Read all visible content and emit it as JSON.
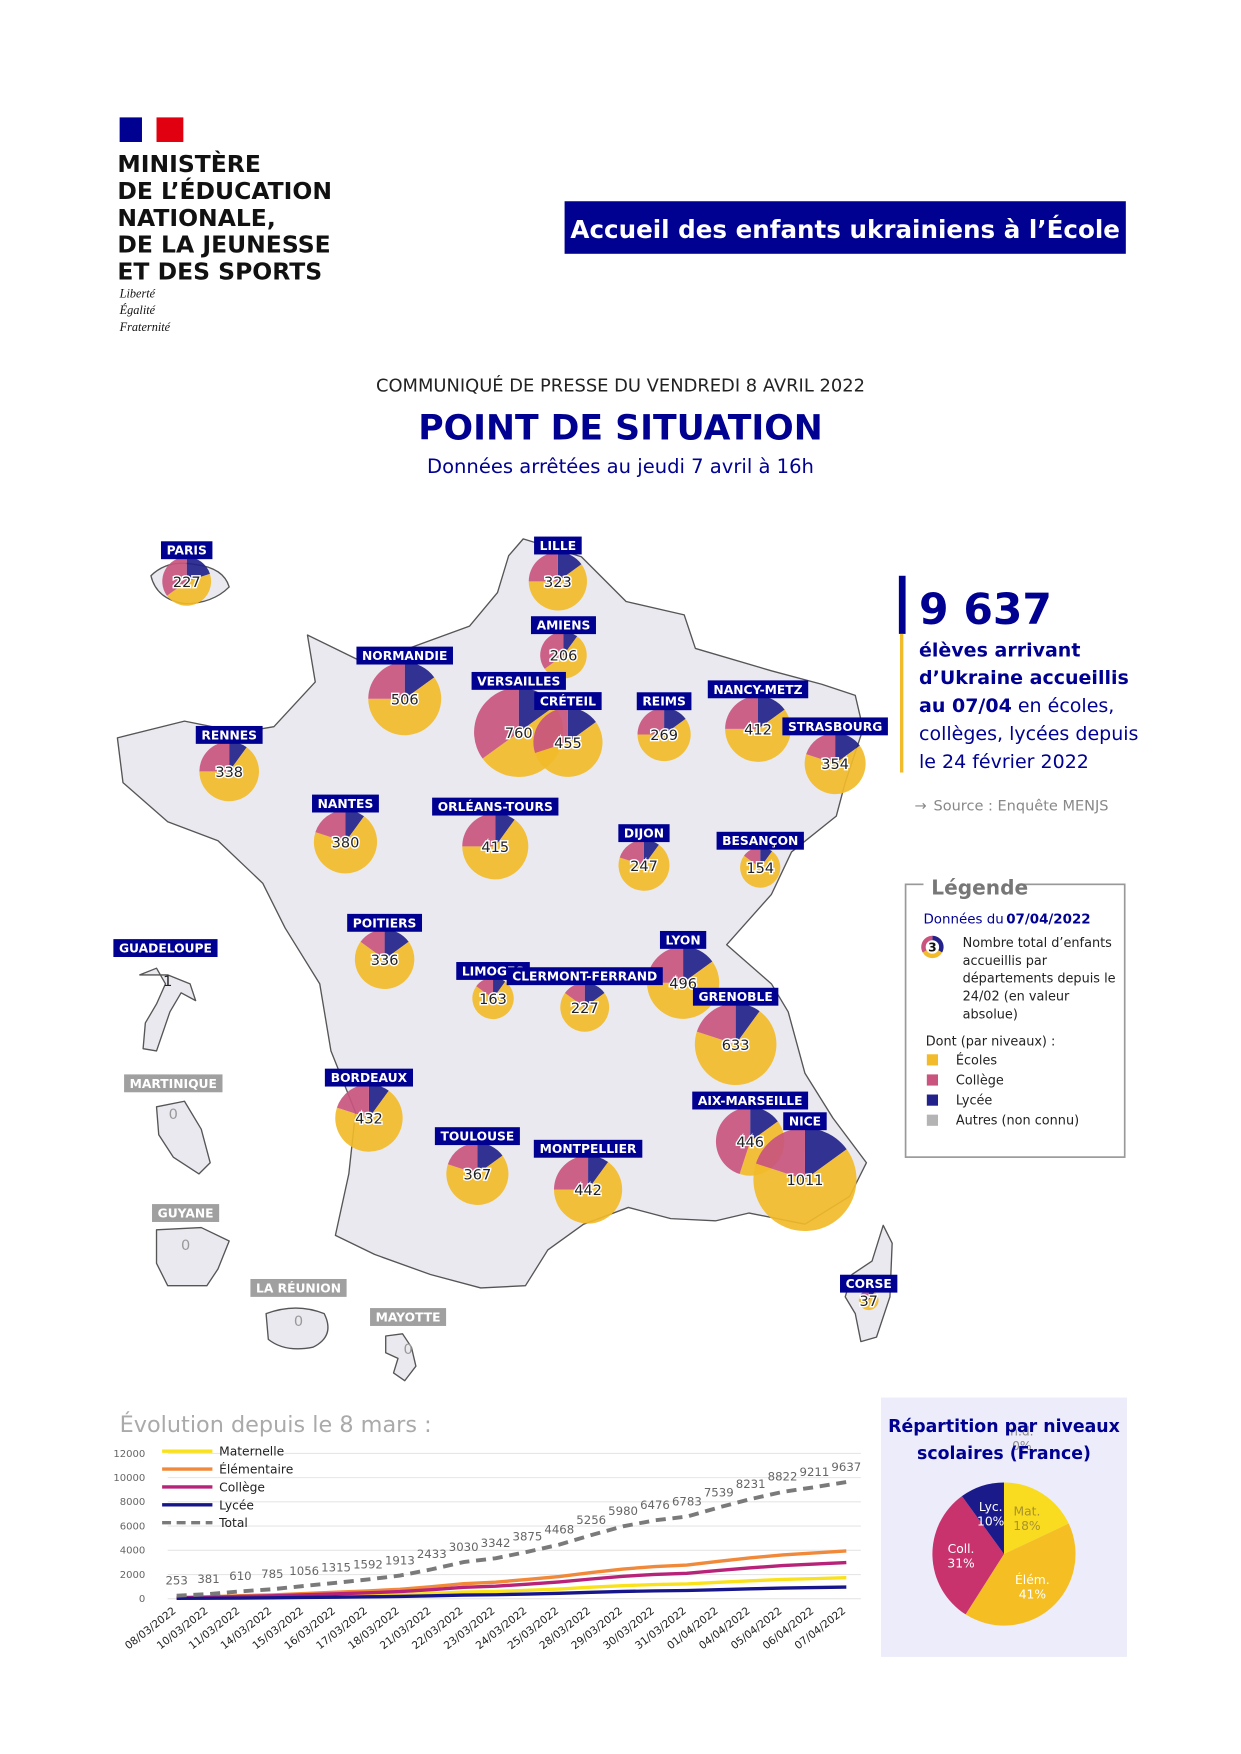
{
  "header": {
    "ministry": [
      "MINISTÈRE",
      "DE L’ÉDUCATION",
      "NATIONALE,",
      "DE LA JEUNESSE",
      "ET DES SPORTS"
    ],
    "motto": [
      "Liberté",
      "Égalité",
      "Fraternité"
    ],
    "banner": "Accueil des enfants ukrainiens à l’École"
  },
  "press": {
    "date_line": "COMMUNIQUÉ DE PRESSE DU VENDREDI 8 AVRIL 2022",
    "title": "POINT DE SITUATION",
    "subtitle": "Données arrêtées au jeudi 7 avril à 16h"
  },
  "stats": {
    "figure": "9 637",
    "bold": "élèves arrivant d’Ukraine accueillis au 07/04",
    "text": "en écoles, collèges, lycées depuis le 24 février 2022",
    "source": "Source : Enquête MENJS"
  },
  "legend": {
    "title": "Légende",
    "date_prefix": "Données du",
    "date": "07/04/2022",
    "example": "3",
    "description": "Nombre total d’enfants accueillis par départements depuis le 24/02 (en valeur absolue)",
    "breakdown_title": "Dont (par niveaux) :",
    "items": [
      {
        "name": "Écoles",
        "color": "#f2bb2b"
      },
      {
        "name": "Collège",
        "color": "#c9557f"
      },
      {
        "name": "Lycée",
        "color": "#22228a"
      },
      {
        "name": "Autres (non connu)",
        "color": "#b4b4b4"
      }
    ]
  },
  "map": {
    "regions": [
      {
        "name": "PARIS",
        "total": 227,
        "shares": [
          45,
          35,
          20
        ]
      },
      {
        "name": "LILLE",
        "total": 323,
        "shares": [
          60,
          25,
          15
        ]
      },
      {
        "name": "AMIENS",
        "total": 206,
        "shares": [
          55,
          35,
          10
        ]
      },
      {
        "name": "NORMANDIE",
        "total": 506,
        "shares": [
          60,
          25,
          15
        ]
      },
      {
        "name": "VERSAILLES",
        "total": 760,
        "shares": [
          50,
          35,
          15
        ]
      },
      {
        "name": "CRÉTEIL",
        "total": 455,
        "shares": [
          55,
          30,
          15
        ]
      },
      {
        "name": "REIMS",
        "total": 269,
        "shares": [
          60,
          25,
          15
        ]
      },
      {
        "name": "NANCY-METZ",
        "total": 412,
        "shares": [
          60,
          25,
          15
        ]
      },
      {
        "name": "STRASBOURG",
        "total": 354,
        "shares": [
          65,
          20,
          15
        ]
      },
      {
        "name": "RENNES",
        "total": 338,
        "shares": [
          65,
          25,
          10
        ]
      },
      {
        "name": "NANTES",
        "total": 380,
        "shares": [
          70,
          20,
          10
        ]
      },
      {
        "name": "ORLÉANS-TOURS",
        "total": 415,
        "shares": [
          65,
          25,
          10
        ]
      },
      {
        "name": "DIJON",
        "total": 247,
        "shares": [
          70,
          20,
          10
        ]
      },
      {
        "name": "BESANÇON",
        "total": 154,
        "shares": [
          75,
          15,
          10
        ]
      },
      {
        "name": "POITIERS",
        "total": 336,
        "shares": [
          70,
          15,
          15
        ]
      },
      {
        "name": "LIMOGES",
        "total": 163,
        "shares": [
          75,
          15,
          10
        ]
      },
      {
        "name": "CLERMONT-FERRAND",
        "total": 227,
        "shares": [
          70,
          15,
          15
        ]
      },
      {
        "name": "LYON",
        "total": 496,
        "shares": [
          60,
          25,
          15
        ]
      },
      {
        "name": "GRENOBLE",
        "total": 633,
        "shares": [
          70,
          20,
          10
        ]
      },
      {
        "name": "BORDEAUX",
        "total": 432,
        "shares": [
          70,
          20,
          10
        ]
      },
      {
        "name": "AIX-MARSEILLE",
        "total": 446,
        "shares": [
          40,
          45,
          15
        ]
      },
      {
        "name": "NICE",
        "total": 1011,
        "shares": [
          65,
          20,
          15
        ]
      },
      {
        "name": "TOULOUSE",
        "total": 367,
        "shares": [
          65,
          20,
          15
        ]
      },
      {
        "name": "MONTPELLIER",
        "total": 442,
        "shares": [
          65,
          25,
          10
        ]
      },
      {
        "name": "CORSE",
        "total": 37,
        "shares": [
          70,
          20,
          10
        ]
      }
    ],
    "overseas": [
      {
        "name": "GUADELOUPE",
        "total": 1
      },
      {
        "name": "MARTINIQUE",
        "total": 0
      },
      {
        "name": "GUYANE",
        "total": 0
      },
      {
        "name": "LA RÉUNION",
        "total": 0
      },
      {
        "name": "MAYOTTE",
        "total": 0
      }
    ]
  },
  "chart_data": [
    {
      "type": "line",
      "title": "Évolution depuis le 8 mars :",
      "categories": [
        "08/03/2022",
        "10/03/2022",
        "11/03/2022",
        "14/03/2022",
        "15/03/2022",
        "16/03/2022",
        "17/03/2022",
        "18/03/2022",
        "21/03/2022",
        "22/03/2022",
        "23/03/2022",
        "24/03/2022",
        "25/03/2022",
        "28/03/2022",
        "29/03/2022",
        "30/03/2022",
        "31/03/2022",
        "01/04/2022",
        "04/04/2022",
        "05/04/2022",
        "06/04/2022",
        "07/04/2022"
      ],
      "series": [
        {
          "name": "Maternelle",
          "color": "#f9e21c",
          "values": [
            50,
            70,
            110,
            140,
            190,
            240,
            290,
            340,
            440,
            550,
            600,
            700,
            800,
            950,
            1080,
            1170,
            1220,
            1360,
            1480,
            1590,
            1660,
            1735
          ]
        },
        {
          "name": "Élémentaire",
          "color": "#f08a3a",
          "values": [
            100,
            160,
            250,
            320,
            430,
            540,
            650,
            780,
            1000,
            1240,
            1370,
            1590,
            1830,
            2160,
            2450,
            2660,
            2780,
            3090,
            3380,
            3620,
            3780,
            3950
          ]
        },
        {
          "name": "Collège",
          "color": "#b8237a",
          "values": [
            80,
            120,
            190,
            240,
            330,
            410,
            490,
            590,
            750,
            940,
            1040,
            1200,
            1390,
            1630,
            1850,
            2010,
            2100,
            2340,
            2550,
            2740,
            2860,
            2990
          ]
        },
        {
          "name": "Lycée",
          "color": "#16168a",
          "values": [
            30,
            40,
            60,
            80,
            110,
            130,
            160,
            190,
            240,
            300,
            330,
            390,
            450,
            530,
            600,
            650,
            680,
            750,
            820,
            880,
            920,
            960
          ]
        },
        {
          "name": "Total",
          "color": "#7a7a7a",
          "dashed": true,
          "data_labels": true,
          "values": [
            253,
            381,
            610,
            785,
            1056,
            1315,
            1592,
            1913,
            2433,
            3030,
            3342,
            3875,
            4468,
            5256,
            5980,
            6476,
            6783,
            7539,
            8231,
            8822,
            9211,
            9637
          ]
        }
      ],
      "ylim": [
        0,
        12000
      ],
      "yticks": [
        0,
        2000,
        4000,
        6000,
        8000,
        10000,
        12000
      ],
      "grid": true
    },
    {
      "type": "pie",
      "title": "Répartition par niveaux scolaires (France)",
      "categories": [
        "Mat.",
        "Élém.",
        "Coll.",
        "Lyc.",
        "n.d."
      ],
      "values": [
        18,
        41,
        31,
        10,
        0
      ],
      "value_labels": [
        "18%",
        "41%",
        "31%",
        "10%",
        "0%"
      ],
      "colors": [
        "#f9dc1f",
        "#f5be22",
        "#c8336e",
        "#1a1a8a",
        "#b4b4b4"
      ],
      "label_colors": [
        "#a8922e",
        "#ffffff",
        "#ffffff",
        "#ffffff",
        "#8a8a8a"
      ]
    }
  ]
}
